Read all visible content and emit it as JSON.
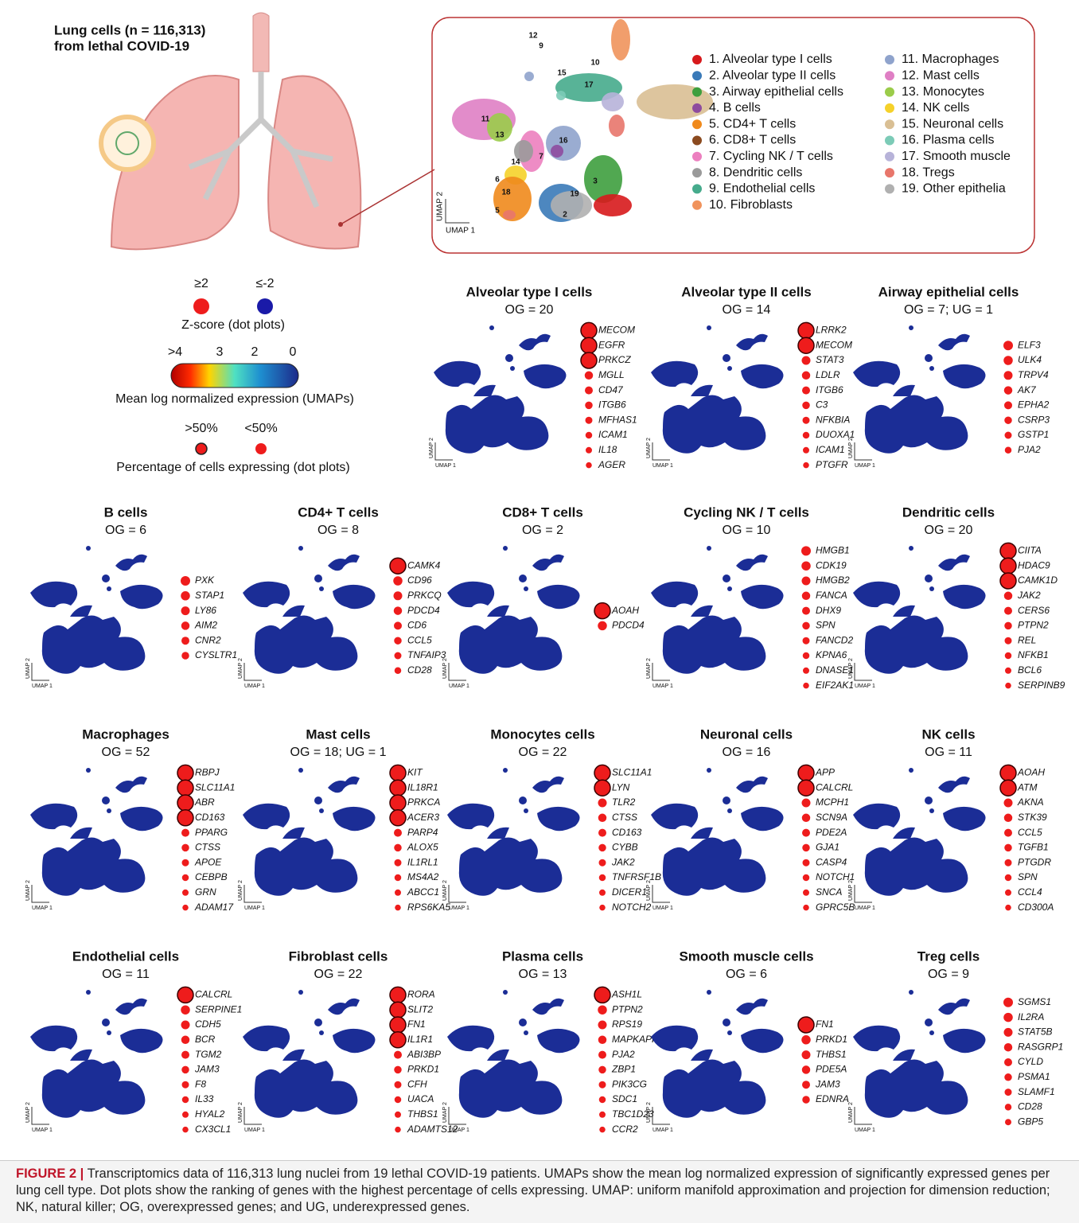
{
  "header": {
    "title": "Lung cells (n = 116,313)",
    "subtitle": "from lethal COVID-19"
  },
  "umap_axes": {
    "x": "UMAP 1",
    "y": "UMAP 2"
  },
  "cell_types": [
    {
      "label": "1. Alveolar type I cells",
      "color": "#d7191c"
    },
    {
      "label": "2. Alveolar type II cells",
      "color": "#3a7ab8"
    },
    {
      "label": "3. Airway epithelial cells",
      "color": "#3e9f3e"
    },
    {
      "label": "4. B cells",
      "color": "#8e4b9e"
    },
    {
      "label": "5. CD4+ T cells",
      "color": "#f08a1c"
    },
    {
      "label": "6. CD8+ T cells",
      "color": "#8b4a1f"
    },
    {
      "label": "7. Cycling NK / T cells",
      "color": "#ec7fbf"
    },
    {
      "label": "8. Dendritic cells",
      "color": "#9a9a9a"
    },
    {
      "label": "9. Endothelial cells",
      "color": "#46ab8c"
    },
    {
      "label": "10. Fibroblasts",
      "color": "#f0935c"
    },
    {
      "label": "11. Macrophages",
      "color": "#8fa3cc"
    },
    {
      "label": "12. Mast cells",
      "color": "#df7fc4"
    },
    {
      "label": "13. Monocytes",
      "color": "#9bcc4a"
    },
    {
      "label": "14. NK cells",
      "color": "#f5d12a"
    },
    {
      "label": "15. Neuronal cells",
      "color": "#d9bf94"
    },
    {
      "label": "16. Plasma cells",
      "color": "#7ccbb7"
    },
    {
      "label": "17. Smooth muscle",
      "color": "#b7b3d9"
    },
    {
      "label": "18. Tregs",
      "color": "#e8766b"
    },
    {
      "label": "19. Other epithelia",
      "color": "#b0b0b0"
    }
  ],
  "map_labels": [
    "12",
    "9",
    "10",
    "15",
    "17",
    "11",
    "13",
    "16",
    "14",
    "7",
    "6",
    "18",
    "5",
    "19",
    "3",
    "2"
  ],
  "legend": {
    "zscore_high": "≥2",
    "zscore_low": "≤-2",
    "zscore_title": "Z-score (dot plots)",
    "expr_ticks": [
      ">4",
      "3",
      "2",
      "0"
    ],
    "expr_title": "Mean log normalized expression (UMAPs)",
    "pct_high": ">50%",
    "pct_low": "<50%",
    "pct_title": "Percentage of cells expressing (dot plots)"
  },
  "panels": [
    {
      "title": "Alveolar type I cells",
      "og": "OG = 20",
      "large": 3,
      "genes": [
        "MECOM",
        "EGFR",
        "PRKCZ",
        "MGLL",
        "CD47",
        "ITGB6",
        "MFHAS1",
        "ICAM1",
        "IL18",
        "AGER"
      ]
    },
    {
      "title": "Alveolar type II cells",
      "og": "OG = 14",
      "large": 2,
      "genes": [
        "LRRK2",
        "MECOM",
        "STAT3",
        "LDLR",
        "ITGB6",
        "C3",
        "NFKBIA",
        "DUOXA1",
        "ICAM1",
        "PTGFR"
      ]
    },
    {
      "title": "Airway epithelial cells",
      "og": "OG = 7; UG = 1",
      "large": 0,
      "genes": [
        "ELF3",
        "ULK4",
        "TRPV4",
        "AK7",
        "EPHA2",
        "CSRP3",
        "GSTP1",
        "PJA2"
      ]
    },
    {
      "title": "B cells",
      "og": "OG = 6",
      "large": 0,
      "genes": [
        "PXK",
        "STAP1",
        "LY86",
        "AIM2",
        "CNR2",
        "CYSLTR1"
      ]
    },
    {
      "title": "CD4+ T cells",
      "og": "OG = 8",
      "large": 1,
      "genes": [
        "CAMK4",
        "CD96",
        "PRKCQ",
        "PDCD4",
        "CD6",
        "CCL5",
        "TNFAIP3",
        "CD28"
      ]
    },
    {
      "title": "CD8+ T cells",
      "og": "OG = 2",
      "large": 1,
      "genes": [
        "AOAH",
        "PDCD4"
      ]
    },
    {
      "title": "Cycling NK / T cells",
      "og": "OG = 10",
      "large": 0,
      "genes": [
        "HMGB1",
        "CDK19",
        "HMGB2",
        "FANCA",
        "DHX9",
        "SPN",
        "FANCD2",
        "KPNA6",
        "DNASE1",
        "EIF2AK1"
      ]
    },
    {
      "title": "Dendritic cells",
      "og": "OG = 20",
      "large": 3,
      "genes": [
        "CIITA",
        "HDAC9",
        "CAMK1D",
        "JAK2",
        "CERS6",
        "PTPN2",
        "REL",
        "NFKB1",
        "BCL6",
        "SERPINB9"
      ]
    },
    {
      "title": "Macrophages",
      "og": "OG = 52",
      "large": 4,
      "genes": [
        "RBPJ",
        "SLC11A1",
        "ABR",
        "CD163",
        "PPARG",
        "CTSS",
        "APOE",
        "CEBPB",
        "GRN",
        "ADAM17"
      ]
    },
    {
      "title": "Mast cells",
      "og": "OG = 18; UG = 1",
      "large": 4,
      "genes": [
        "KIT",
        "IL18R1",
        "PRKCA",
        "ACER3",
        "PARP4",
        "ALOX5",
        "IL1RL1",
        "MS4A2",
        "ABCC1",
        "RPS6KA5"
      ]
    },
    {
      "title": "Monocytes cells",
      "og": "OG = 22",
      "large": 2,
      "genes": [
        "SLC11A1",
        "LYN",
        "TLR2",
        "CTSS",
        "CD163",
        "CYBB",
        "JAK2",
        "TNFRSF1B",
        "DICER1",
        "NOTCH2"
      ]
    },
    {
      "title": "Neuronal cells",
      "og": "OG = 16",
      "large": 2,
      "genes": [
        "APP",
        "CALCRL",
        "MCPH1",
        "SCN9A",
        "PDE2A",
        "GJA1",
        "CASP4",
        "NOTCH1",
        "SNCA",
        "GPRC5B"
      ]
    },
    {
      "title": "NK cells",
      "og": "OG = 11",
      "large": 2,
      "genes": [
        "AOAH",
        "ATM",
        "AKNA",
        "STK39",
        "CCL5",
        "TGFB1",
        "PTGDR",
        "SPN",
        "CCL4",
        "CD300A"
      ]
    },
    {
      "title": "Endothelial cells",
      "og": "OG = 11",
      "large": 1,
      "genes": [
        "CALCRL",
        "SERPINE1",
        "CDH5",
        "BCR",
        "TGM2",
        "JAM3",
        "F8",
        "IL33",
        "HYAL2",
        "CX3CL1"
      ]
    },
    {
      "title": "Fibroblast cells",
      "og": "OG = 22",
      "large": 4,
      "genes": [
        "RORA",
        "SLIT2",
        "FN1",
        "IL1R1",
        "ABI3BP",
        "PRKD1",
        "CFH",
        "UACA",
        "THBS1",
        "ADAMTS12"
      ]
    },
    {
      "title": "Plasma cells",
      "og": "OG = 13",
      "large": 1,
      "genes": [
        "ASH1L",
        "PTPN2",
        "RPS19",
        "MAPKAPK2",
        "PJA2",
        "ZBP1",
        "PIK3CG",
        "SDC1",
        "TBC1D23",
        "CCR2"
      ]
    },
    {
      "title": "Smooth muscle cells",
      "og": "OG = 6",
      "large": 1,
      "genes": [
        "FN1",
        "PRKD1",
        "THBS1",
        "PDE5A",
        "JAM3",
        "EDNRA"
      ]
    },
    {
      "title": "Treg cells",
      "og": "OG = 9",
      "large": 0,
      "genes": [
        "SGMS1",
        "IL2RA",
        "STAT5B",
        "RASGRP1",
        "CYLD",
        "PSMA1",
        "SLAMF1",
        "CD28",
        "GBP5"
      ]
    }
  ],
  "caption": {
    "label": "FIGURE 2 |",
    "text": "Transcriptomics data of 116,313 lung nuclei from 19 lethal COVID-19 patients. UMAPs show the mean log normalized expression of significantly expressed genes per lung cell type. Dot plots show the ranking of genes with the highest percentage of cells expressing. UMAP: uniform manifold approximation and projection for dimension reduction; NK, natural killer; OG, overexpressed genes; and UG, underexpressed genes."
  }
}
